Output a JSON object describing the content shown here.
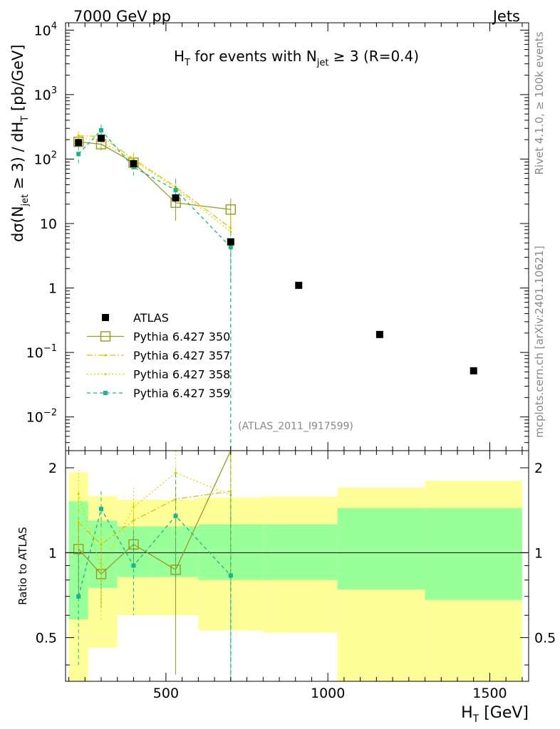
{
  "header": {
    "left": "7000 GeV pp",
    "right": "Jets"
  },
  "side_labels": {
    "rivet": "Rivet 4.1.0, ≥ 100k events",
    "mcplots": "mcplots.cern.ch [arXiv:2401.10621]"
  },
  "chart_data": {
    "type": "scatter",
    "title": {
      "prefix": "H",
      "prefix_sub": "T",
      "middle": " for events with N",
      "middle_sub": "jet",
      "suffix": " ≥ 3 (R=0.4)"
    },
    "analysis_id": "(ATLAS_2011_I917599)",
    "ylabel": {
      "a": "dσ(N",
      "a_sub": "jet",
      "b": " ≥ 3) / dH",
      "b_sub": "T",
      "c": " [pb/GeV]"
    },
    "xlabel": {
      "main": "H",
      "sub": "T",
      "unit": " [GeV]"
    },
    "ratio_ylabel": "Ratio to ATLAS",
    "xlim": [
      190,
      1620
    ],
    "ylim": [
      0.003,
      13000
    ],
    "ratio_ylim": [
      0.35,
      2.3
    ],
    "main_yticks": [
      {
        "value": 0.01,
        "base": "10",
        "exp": "−2"
      },
      {
        "value": 0.1,
        "base": "10",
        "exp": "−1"
      },
      {
        "value": 1,
        "base": "1",
        "exp": ""
      },
      {
        "value": 10,
        "base": "10",
        "exp": ""
      },
      {
        "value": 100,
        "base": "10",
        "exp": "2"
      },
      {
        "value": 1000,
        "base": "10",
        "exp": "3"
      },
      {
        "value": 10000,
        "base": "10",
        "exp": "4"
      }
    ],
    "ratio_yticks": [
      {
        "value": 0.5,
        "label": "0.5"
      },
      {
        "value": 1,
        "label": "1"
      },
      {
        "value": 2,
        "label": "2"
      }
    ],
    "xticks": [
      {
        "value": 500,
        "label": "500"
      },
      {
        "value": 1000,
        "label": "1000"
      },
      {
        "value": 1500,
        "label": "1500"
      }
    ],
    "data": {
      "name": "ATLAS",
      "color": "#000000",
      "x": [
        230,
        300,
        400,
        530,
        700,
        910,
        1160,
        1450
      ],
      "y": [
        180,
        210,
        85,
        25,
        5.2,
        1.1,
        0.19,
        0.052
      ],
      "xlo": [
        200,
        260,
        350,
        450,
        600,
        800,
        1030,
        1300
      ],
      "xhi": [
        260,
        350,
        450,
        600,
        800,
        1030,
        1300,
        1600
      ],
      "ratio_band_green": [
        [
          0.58,
          1.52
        ],
        [
          0.75,
          1.3
        ],
        [
          0.82,
          1.24
        ],
        [
          0.82,
          1.24
        ],
        [
          0.8,
          1.26
        ],
        [
          0.8,
          1.26
        ],
        [
          0.74,
          1.44
        ],
        [
          0.68,
          1.44
        ]
      ],
      "ratio_band_yellow": [
        [
          0.3,
          1.93
        ],
        [
          0.46,
          1.59
        ],
        [
          0.6,
          1.54
        ],
        [
          0.6,
          1.54
        ],
        [
          0.53,
          1.57
        ],
        [
          0.52,
          1.58
        ],
        [
          0.3,
          1.7
        ],
        [
          0.3,
          1.8
        ]
      ]
    },
    "series": [
      {
        "name": "Pythia 6.427 350",
        "color": "#9a9a1e",
        "dash": "",
        "marker": "open-square",
        "x": [
          230,
          300,
          400,
          530,
          700
        ],
        "y": [
          185,
          170,
          88,
          21,
          16.5
        ],
        "err": [
          25,
          35,
          15,
          10,
          8
        ],
        "ratio": [
          1.03,
          0.84,
          1.07,
          0.87,
          3.1
        ],
        "ratio_err": [
          0.3,
          0.2,
          0.15,
          0.5,
          1.0
        ]
      },
      {
        "name": "Pythia 6.427 357",
        "color": "#e0c000",
        "dash": "8,3,2,3",
        "marker": "dot",
        "x": [
          230,
          300,
          400,
          530,
          700
        ],
        "y": [
          230,
          225,
          100,
          37,
          8.5
        ],
        "err": [
          40,
          50,
          25,
          14,
          5
        ],
        "ratio": [
          1.28,
          1.07,
          1.3,
          1.55,
          1.65
        ],
        "ratio_err": [
          0.3,
          0.25,
          0.2,
          0.45,
          0.9
        ]
      },
      {
        "name": "Pythia 6.427 358",
        "color": "#d8d800",
        "dash": "2,3",
        "marker": "dot",
        "x": [
          230,
          300,
          400,
          530,
          700
        ],
        "y": [
          215,
          190,
          95,
          35,
          7.5
        ],
        "err": [
          35,
          45,
          20,
          12,
          4
        ],
        "ratio": [
          1.62,
          0.88,
          1.45,
          1.92,
          1.6
        ],
        "ratio_err": [
          0.35,
          0.3,
          0.25,
          0.5,
          0.9
        ]
      },
      {
        "name": "Pythia 6.427 359",
        "color": "#19b38c",
        "dash": "5,4",
        "marker": "filled-square",
        "x": [
          230,
          300,
          400,
          530,
          700
        ],
        "y": [
          120,
          280,
          75,
          33,
          4.3
        ],
        "err": [
          35,
          60,
          25,
          15,
          3
        ],
        "ratio": [
          0.7,
          1.43,
          0.9,
          1.35,
          0.83
        ],
        "ratio_err": [
          0.3,
          0.22,
          0.3,
          0.55,
          0.8
        ]
      }
    ]
  }
}
